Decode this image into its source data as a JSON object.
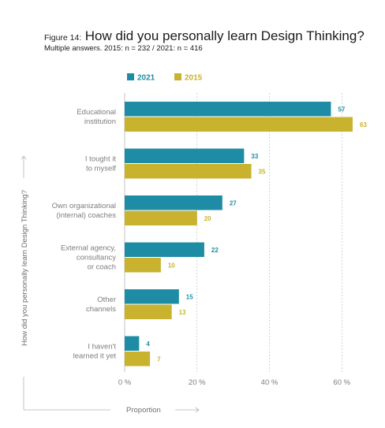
{
  "title": {
    "prefix": "Figure 14:",
    "main": "How did you personally learn Design Thinking?",
    "subtitle": "Multiple answers. 2015: n = 232 / 2021: n = 416"
  },
  "colors": {
    "s2021": "#1f8ca6",
    "s2015": "#c8b22e",
    "label2021": "#1f8ca6",
    "label2015": "#c8b22e",
    "axis": "#b5b5b5",
    "text": "#7d7d7d"
  },
  "chart_data": {
    "type": "bar",
    "orientation": "horizontal",
    "categories": [
      [
        "Educational",
        "institution"
      ],
      [
        "I tought it",
        "to myself"
      ],
      [
        "Own organizational",
        "(internal) coaches"
      ],
      [
        "External agency,",
        "consultancy",
        "or coach"
      ],
      [
        "Other",
        "channels"
      ],
      [
        "I haven't",
        "learned it yet"
      ]
    ],
    "series": [
      {
        "name": "2021",
        "values": [
          57,
          33,
          27,
          22,
          15,
          4
        ]
      },
      {
        "name": "2015",
        "values": [
          63,
          35,
          20,
          10,
          13,
          7
        ]
      }
    ],
    "xlim": [
      0,
      63
    ],
    "x_ticks": [
      0,
      20,
      40,
      60
    ],
    "x_tick_labels": [
      "0 %",
      "20 %",
      "40 %",
      "60 %"
    ],
    "xlabel": "Proportion",
    "ylabel": "How did you personally learn Design Thinking?",
    "grid": "vertical",
    "legend": "top-left"
  }
}
